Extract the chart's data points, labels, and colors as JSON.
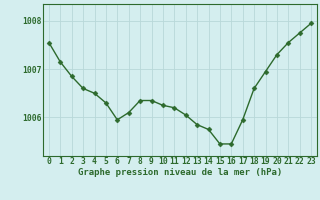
{
  "x": [
    0,
    1,
    2,
    3,
    4,
    5,
    6,
    7,
    8,
    9,
    10,
    11,
    12,
    13,
    14,
    15,
    16,
    17,
    18,
    19,
    20,
    21,
    22,
    23
  ],
  "y": [
    1007.55,
    1007.15,
    1006.85,
    1006.6,
    1006.5,
    1006.3,
    1005.95,
    1006.1,
    1006.35,
    1006.35,
    1006.25,
    1006.2,
    1006.05,
    1005.85,
    1005.75,
    1005.45,
    1005.45,
    1005.95,
    1006.6,
    1006.95,
    1007.3,
    1007.55,
    1007.75,
    1007.95
  ],
  "line_color": "#2d6a2d",
  "marker_color": "#2d6a2d",
  "bg_color": "#d4eeef",
  "grid_color": "#b8d8d9",
  "axis_color": "#2d6a2d",
  "xlabel": "Graphe pression niveau de la mer (hPa)",
  "ylim": [
    1005.2,
    1008.35
  ],
  "yticks": [
    1006,
    1007,
    1008
  ],
  "xticks": [
    0,
    1,
    2,
    3,
    4,
    5,
    6,
    7,
    8,
    9,
    10,
    11,
    12,
    13,
    14,
    15,
    16,
    17,
    18,
    19,
    20,
    21,
    22,
    23
  ],
  "xlabel_fontsize": 6.5,
  "tick_fontsize": 5.8,
  "linewidth": 1.0,
  "markersize": 2.5
}
